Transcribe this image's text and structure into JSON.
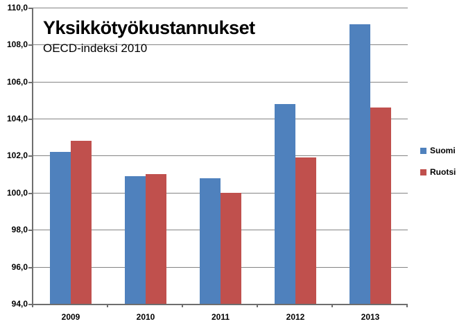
{
  "title": "Yksikkötyökustannukset",
  "subtitle": "OECD-indeksi 2010",
  "legend": {
    "position": "right",
    "items": [
      {
        "label": "Suomi",
        "color": "#4F81BD"
      },
      {
        "label": "Ruotsi",
        "color": "#C0504D"
      }
    ]
  },
  "chart_data": {
    "type": "bar",
    "title": "Yksikkötyökustannukset",
    "subtitle": "OECD-indeksi 2010",
    "categories": [
      "2009",
      "2010",
      "2011",
      "2012",
      "2013"
    ],
    "series": [
      {
        "name": "Suomi",
        "color": "#4F81BD",
        "values": [
          102.2,
          100.9,
          100.8,
          104.8,
          109.1
        ]
      },
      {
        "name": "Ruotsi",
        "color": "#C0504D",
        "values": [
          102.8,
          101.0,
          100.0,
          101.9,
          104.6
        ]
      }
    ],
    "xlabel": "",
    "ylabel": "",
    "ylim": [
      94,
      110
    ],
    "yticks": [
      {
        "value": 94,
        "label": "94,0"
      },
      {
        "value": 96,
        "label": "96,0"
      },
      {
        "value": 98,
        "label": "98,0"
      },
      {
        "value": 100,
        "label": "100,0"
      },
      {
        "value": 102,
        "label": "102,0"
      },
      {
        "value": 104,
        "label": "104,0"
      },
      {
        "value": 106,
        "label": "106,0"
      },
      {
        "value": 108,
        "label": "108,0"
      },
      {
        "value": 110,
        "label": "110,0"
      }
    ],
    "decimal_separator": ",",
    "grid": true,
    "legend_position": "right"
  }
}
